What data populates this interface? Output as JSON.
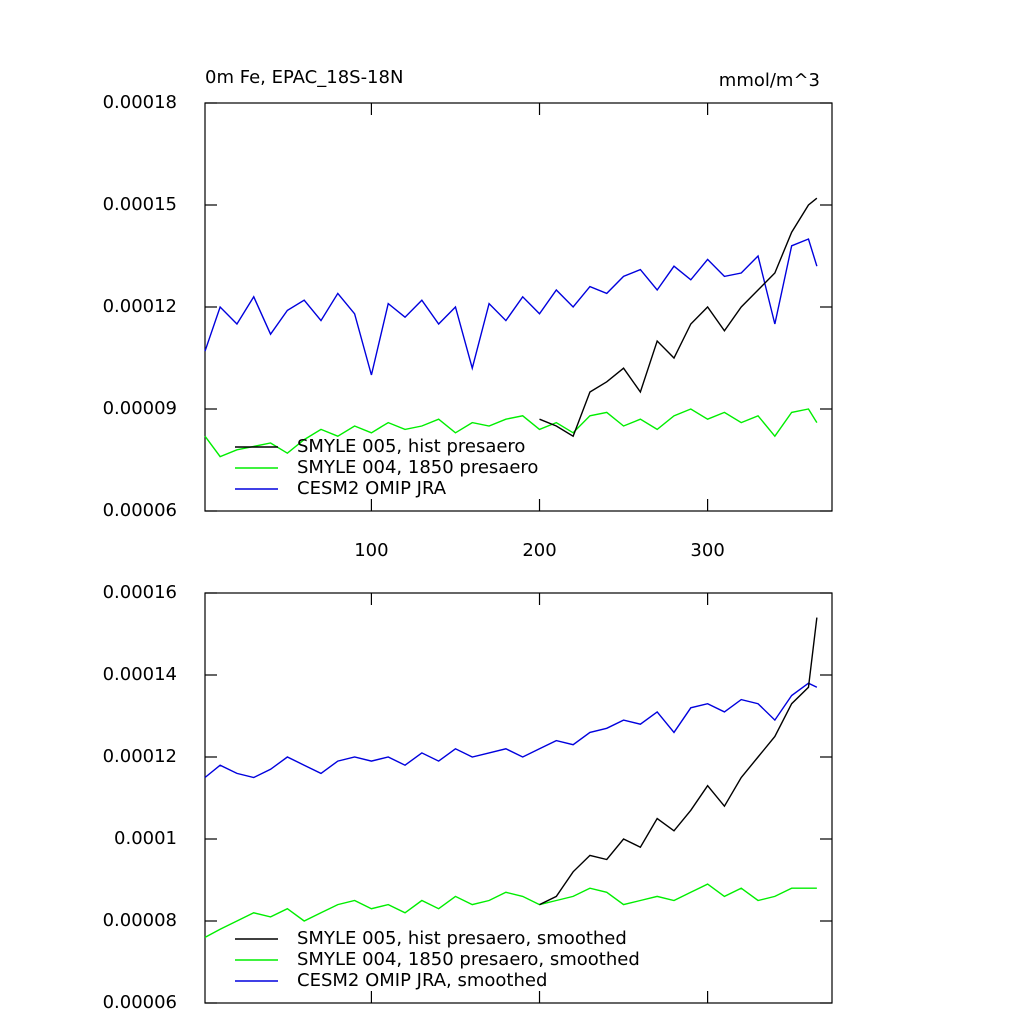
{
  "chart_data": [
    {
      "type": "line",
      "title": "0m Fe, EPAC_18S-18N",
      "units": "mmol/m^3",
      "x": [
        1,
        10,
        20,
        30,
        40,
        50,
        60,
        70,
        80,
        90,
        100,
        110,
        120,
        130,
        140,
        150,
        160,
        170,
        180,
        190,
        200,
        210,
        220,
        230,
        240,
        250,
        260,
        270,
        280,
        290,
        300,
        310,
        320,
        330,
        340,
        350,
        360,
        365
      ],
      "xlim": [
        1,
        374
      ],
      "xticks": [
        100,
        200,
        300
      ],
      "show_xtick_labels": true,
      "ylim": [
        6e-05,
        0.00018
      ],
      "yticks": [
        6e-05,
        9e-05,
        0.00012,
        0.00015,
        0.00018
      ],
      "legend": "lower left",
      "series": [
        {
          "name": "SMYLE 005, hist presaero",
          "color": "#000000",
          "values": [
            null,
            null,
            null,
            null,
            null,
            null,
            null,
            null,
            null,
            null,
            null,
            null,
            null,
            null,
            null,
            null,
            null,
            null,
            null,
            null,
            8.7e-05,
            8.5e-05,
            8.2e-05,
            9.5e-05,
            9.8e-05,
            0.000102,
            9.5e-05,
            0.00011,
            0.000105,
            0.000115,
            0.00012,
            0.000113,
            0.00012,
            0.000125,
            0.00013,
            0.000142,
            0.00015,
            0.000152
          ]
        },
        {
          "name": "SMYLE 004, 1850 presaero",
          "color": "#00ee00",
          "values": [
            8.2e-05,
            7.6e-05,
            7.8e-05,
            7.9e-05,
            8e-05,
            7.7e-05,
            8.1e-05,
            8.4e-05,
            8.2e-05,
            8.5e-05,
            8.3e-05,
            8.6e-05,
            8.4e-05,
            8.5e-05,
            8.7e-05,
            8.3e-05,
            8.6e-05,
            8.5e-05,
            8.7e-05,
            8.8e-05,
            8.4e-05,
            8.6e-05,
            8.3e-05,
            8.8e-05,
            8.9e-05,
            8.5e-05,
            8.7e-05,
            8.4e-05,
            8.8e-05,
            9e-05,
            8.7e-05,
            8.9e-05,
            8.6e-05,
            8.8e-05,
            8.2e-05,
            8.9e-05,
            9e-05,
            8.6e-05
          ]
        },
        {
          "name": "CESM2 OMIP JRA",
          "color": "#0000dd",
          "values": [
            0.000107,
            0.00012,
            0.000115,
            0.000123,
            0.000112,
            0.000119,
            0.000122,
            0.000116,
            0.000124,
            0.000118,
            0.0001,
            0.000121,
            0.000117,
            0.000122,
            0.000115,
            0.00012,
            0.000102,
            0.000121,
            0.000116,
            0.000123,
            0.000118,
            0.000125,
            0.00012,
            0.000126,
            0.000124,
            0.000129,
            0.000131,
            0.000125,
            0.000132,
            0.000128,
            0.000134,
            0.000129,
            0.00013,
            0.000135,
            0.000115,
            0.000138,
            0.00014,
            0.000132
          ]
        }
      ]
    },
    {
      "type": "line",
      "x": [
        1,
        10,
        20,
        30,
        40,
        50,
        60,
        70,
        80,
        90,
        100,
        110,
        120,
        130,
        140,
        150,
        160,
        170,
        180,
        190,
        200,
        210,
        220,
        230,
        240,
        250,
        260,
        270,
        280,
        290,
        300,
        310,
        320,
        330,
        340,
        350,
        360,
        365
      ],
      "xlim": [
        1,
        374
      ],
      "xticks": [
        100,
        200,
        300
      ],
      "show_xtick_labels": false,
      "ylim": [
        6e-05,
        0.00016
      ],
      "yticks": [
        6e-05,
        8e-05,
        0.0001,
        0.00012,
        0.00014,
        0.00016
      ],
      "legend": "lower left",
      "series": [
        {
          "name": "SMYLE 005, hist presaero, smoothed",
          "color": "#000000",
          "values": [
            null,
            null,
            null,
            null,
            null,
            null,
            null,
            null,
            null,
            null,
            null,
            null,
            null,
            null,
            null,
            null,
            null,
            null,
            null,
            null,
            8.4e-05,
            8.6e-05,
            9.2e-05,
            9.6e-05,
            9.5e-05,
            0.0001,
            9.8e-05,
            0.000105,
            0.000102,
            0.000107,
            0.000113,
            0.000108,
            0.000115,
            0.00012,
            0.000125,
            0.000133,
            0.000137,
            0.000154
          ]
        },
        {
          "name": "SMYLE 004, 1850 presaero, smoothed",
          "color": "#00ee00",
          "values": [
            7.6e-05,
            7.8e-05,
            8e-05,
            8.2e-05,
            8.1e-05,
            8.3e-05,
            8e-05,
            8.2e-05,
            8.4e-05,
            8.5e-05,
            8.3e-05,
            8.4e-05,
            8.2e-05,
            8.5e-05,
            8.3e-05,
            8.6e-05,
            8.4e-05,
            8.5e-05,
            8.7e-05,
            8.6e-05,
            8.4e-05,
            8.5e-05,
            8.6e-05,
            8.8e-05,
            8.7e-05,
            8.4e-05,
            8.5e-05,
            8.6e-05,
            8.5e-05,
            8.7e-05,
            8.9e-05,
            8.6e-05,
            8.8e-05,
            8.5e-05,
            8.6e-05,
            8.8e-05,
            8.8e-05,
            8.8e-05
          ]
        },
        {
          "name": "CESM2 OMIP JRA, smoothed",
          "color": "#0000dd",
          "values": [
            0.000115,
            0.000118,
            0.000116,
            0.000115,
            0.000117,
            0.00012,
            0.000118,
            0.000116,
            0.000119,
            0.00012,
            0.000119,
            0.00012,
            0.000118,
            0.000121,
            0.000119,
            0.000122,
            0.00012,
            0.000121,
            0.000122,
            0.00012,
            0.000122,
            0.000124,
            0.000123,
            0.000126,
            0.000127,
            0.000129,
            0.000128,
            0.000131,
            0.000126,
            0.000132,
            0.000133,
            0.000131,
            0.000134,
            0.000133,
            0.000129,
            0.000135,
            0.000138,
            0.000137
          ]
        }
      ]
    }
  ]
}
